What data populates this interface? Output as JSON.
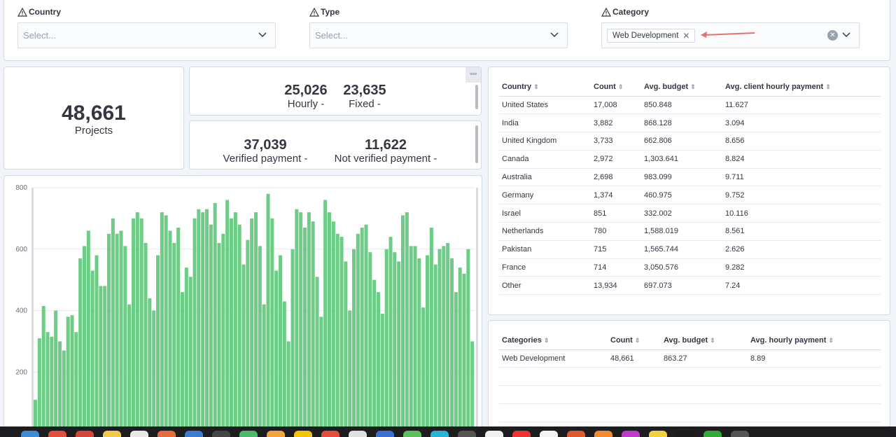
{
  "filters": [
    {
      "label": "Country",
      "placeholder": "Select...",
      "value": null
    },
    {
      "label": "Type",
      "placeholder": "Select...",
      "value": null
    },
    {
      "label": "Category",
      "placeholder": "",
      "value": "Web Development"
    }
  ],
  "metrics": {
    "projects": {
      "value": "48,661",
      "label": "Projects"
    },
    "hourly": {
      "value": "25,026",
      "label": "Hourly -"
    },
    "fixed": {
      "value": "23,635",
      "label": "Fixed -"
    },
    "verified": {
      "value": "37,039",
      "label": "Verified payment -"
    },
    "not_verified": {
      "value": "11,622",
      "label": "Not verified payment -"
    }
  },
  "country_table": {
    "headers": [
      "Country",
      "Count",
      "Avg. budget",
      "Avg. client hourly payment"
    ],
    "rows": [
      [
        "United States",
        "17,008",
        "850.848",
        "11.627"
      ],
      [
        "India",
        "3,882",
        "868.128",
        "3.094"
      ],
      [
        "United Kingdom",
        "3,733",
        "662.806",
        "8.656"
      ],
      [
        "Canada",
        "2,972",
        "1,303.641",
        "8.824"
      ],
      [
        "Australia",
        "2,698",
        "983.099",
        "9.711"
      ],
      [
        "Germany",
        "1,374",
        "460.975",
        "9.752"
      ],
      [
        "Israel",
        "851",
        "332.002",
        "10.116"
      ],
      [
        "Netherlands",
        "780",
        "1,588.019",
        "8.561"
      ],
      [
        "Pakistan",
        "715",
        "1,565.744",
        "2.626"
      ],
      [
        "France",
        "714",
        "3,050.576",
        "9.282"
      ],
      [
        "Other",
        "13,934",
        "697.073",
        "7.24"
      ]
    ]
  },
  "category_table": {
    "headers": [
      "Categories",
      "Count",
      "Avg. budget",
      "Avg. hourly payment"
    ],
    "rows": [
      [
        "Web Development",
        "48,661",
        "863.27",
        "8.89"
      ]
    ]
  },
  "chart_data": {
    "type": "bar",
    "yticks": [
      "800",
      "600",
      "400",
      "200"
    ],
    "ylim": [
      0,
      800
    ],
    "bar_color": "#6dcc85",
    "values": [
      110,
      310,
      415,
      330,
      315,
      400,
      300,
      270,
      380,
      385,
      330,
      570,
      610,
      660,
      530,
      580,
      480,
      480,
      650,
      700,
      650,
      660,
      610,
      420,
      700,
      720,
      700,
      620,
      440,
      400,
      580,
      720,
      710,
      660,
      620,
      670,
      460,
      540,
      510,
      700,
      730,
      720,
      730,
      680,
      750,
      620,
      650,
      760,
      700,
      720,
      680,
      550,
      630,
      700,
      720,
      610,
      420,
      780,
      700,
      530,
      580,
      430,
      300,
      600,
      730,
      720,
      670,
      720,
      690,
      510,
      380,
      760,
      720,
      690,
      650,
      640,
      560,
      400,
      600,
      650,
      670,
      680,
      590,
      500,
      460,
      390,
      600,
      640,
      590,
      560,
      710,
      720,
      610,
      610,
      570,
      410,
      580,
      670,
      550,
      600,
      610,
      620,
      570,
      460,
      540,
      520,
      600,
      300
    ]
  },
  "colors": {
    "accent_annotation": "#e8706b",
    "bar": "#6dcc85"
  }
}
